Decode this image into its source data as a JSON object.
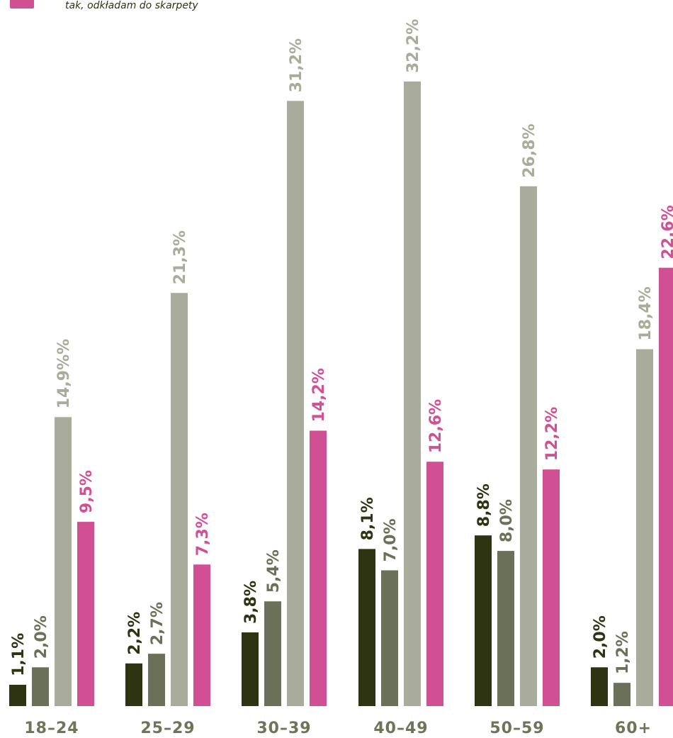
{
  "legend": {
    "items": [
      {
        "label": "tak, odkładam do skarpety",
        "color": "#d14f93"
      }
    ]
  },
  "chart_data": {
    "type": "bar",
    "categories": [
      "18–24",
      "25–29",
      "30–39",
      "40–49",
      "50–59",
      "60+"
    ],
    "series": [
      {
        "color": "#2e3311",
        "label_color": "#2e3311",
        "values": [
          1.1,
          2.2,
          3.8,
          8.1,
          8.8,
          2.0
        ],
        "labels": [
          "1,1%",
          "2,2%",
          "3,8%",
          "8,1%",
          "8,8%",
          "2,0%"
        ]
      },
      {
        "color": "#6b7058",
        "label_color": "#6b7058",
        "values": [
          2.0,
          2.7,
          5.4,
          7.0,
          8.0,
          1.2
        ],
        "labels": [
          "2,0%",
          "2,7%",
          "5,4%",
          "7,0%",
          "8,0%",
          "1,2%"
        ]
      },
      {
        "color": "#a9ab9b",
        "label_color": "#a9ab9b",
        "values": [
          14.9,
          21.3,
          31.2,
          32.2,
          26.8,
          18.4
        ],
        "labels": [
          "14,9%%",
          "21,3%",
          "31,2%",
          "32,2%",
          "26,8%",
          "18,4%"
        ]
      },
      {
        "name": "tak, odkładam do skarpety",
        "color": "#d14f93",
        "label_color": "#d14f93",
        "values": [
          9.5,
          7.3,
          14.2,
          12.6,
          12.2,
          22.6
        ],
        "labels": [
          "9,5%",
          "7,3%",
          "14,2%",
          "12,6%",
          "12,2%",
          "22,6%"
        ]
      }
    ],
    "ylim": [
      0,
      32.2
    ],
    "grid": false
  }
}
